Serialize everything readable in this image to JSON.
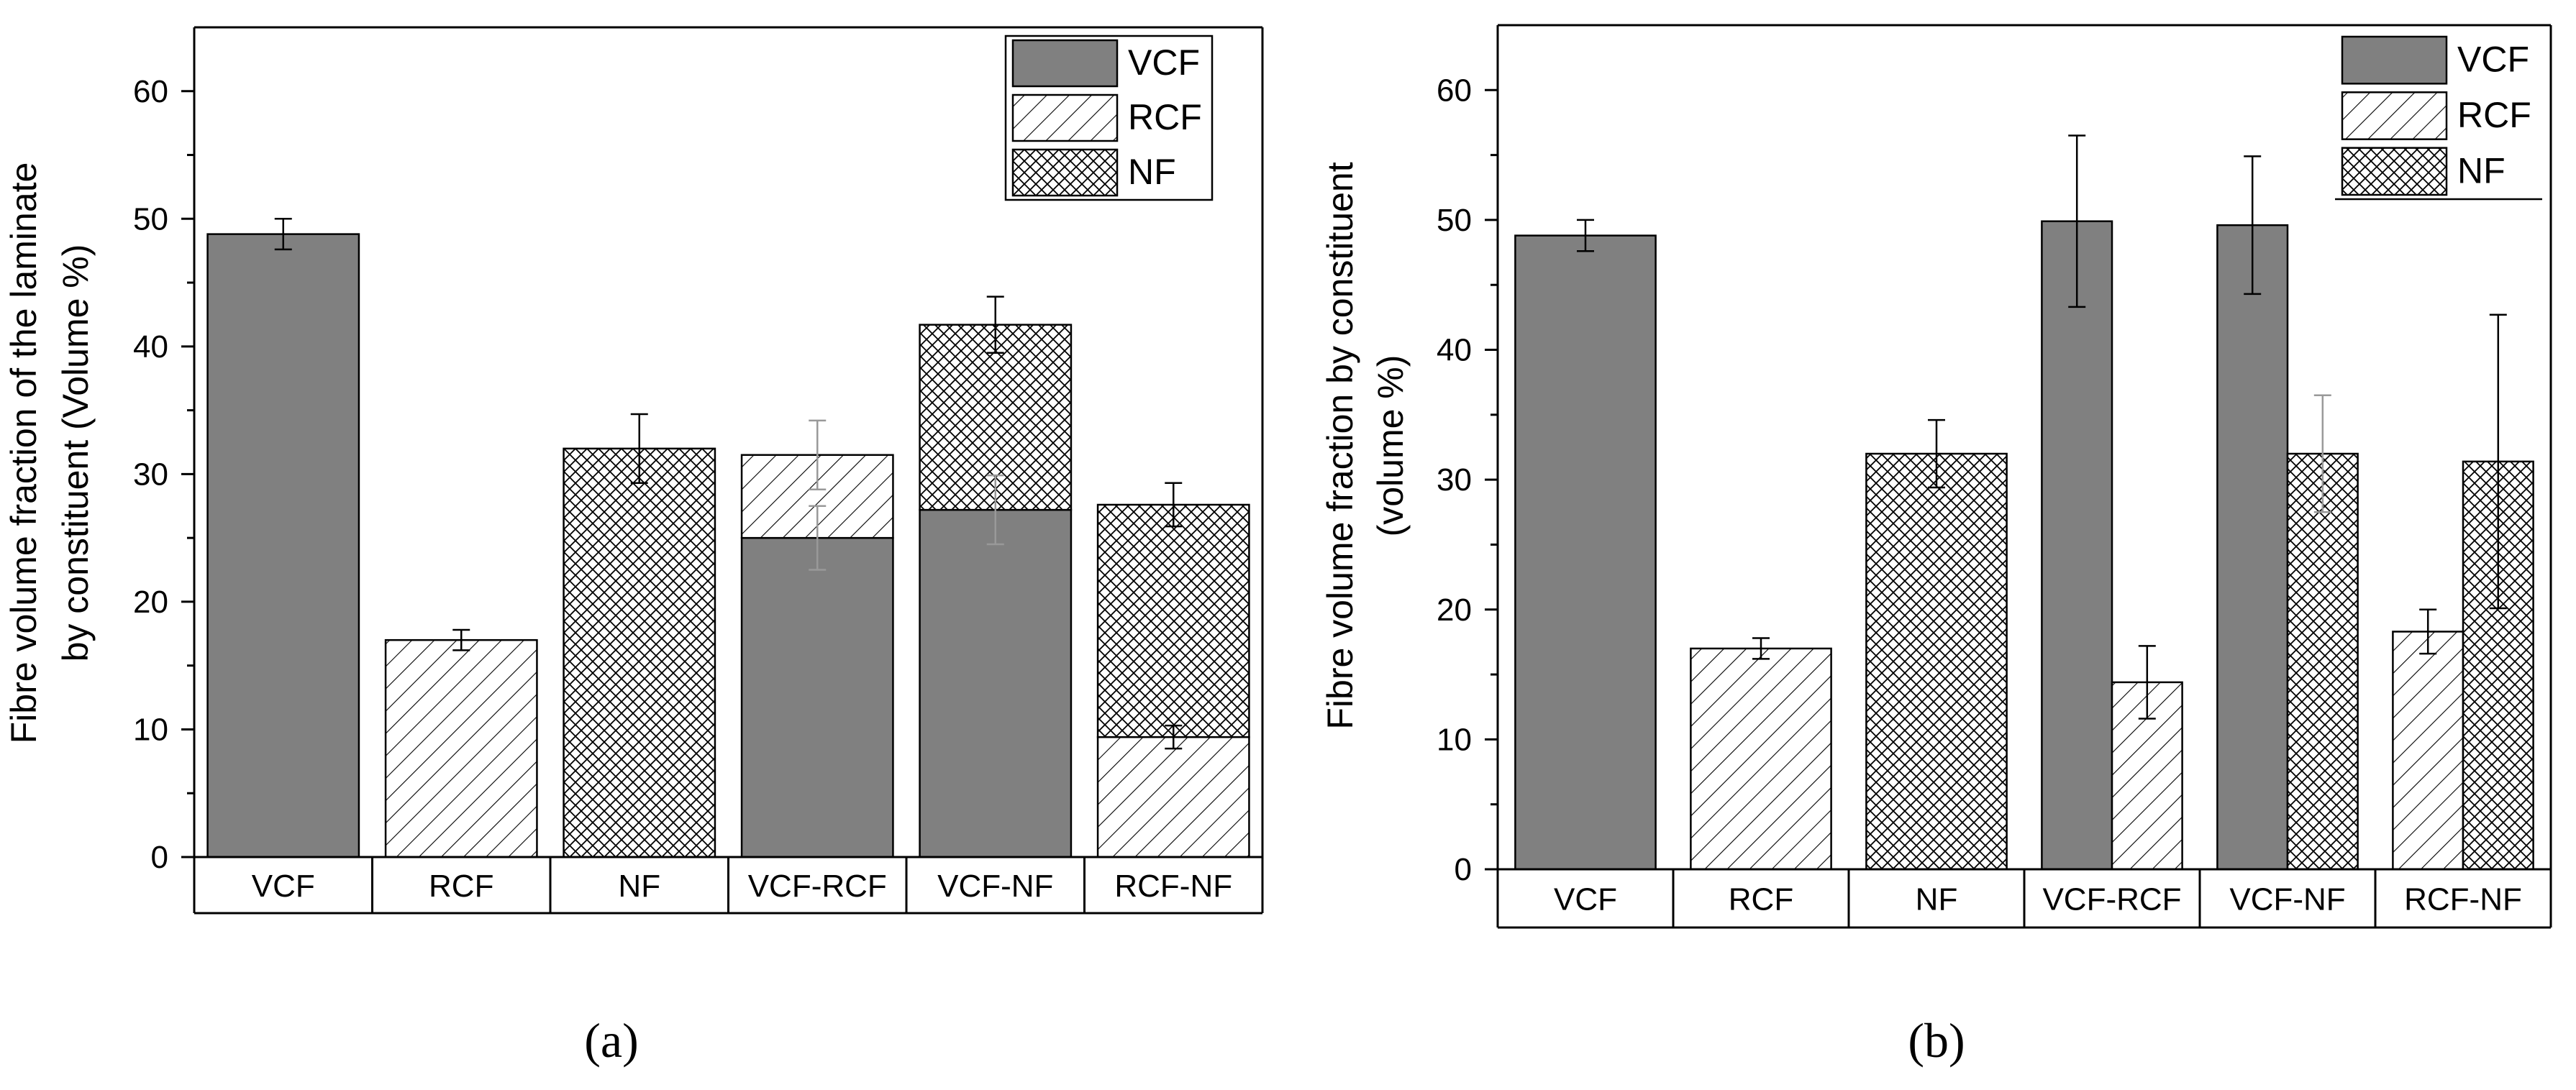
{
  "chart_data": [
    {
      "type": "bar",
      "panel_label": "(a)",
      "variant": "stacked",
      "categories": [
        "VCF",
        "RCF",
        "NF",
        "VCF-RCF",
        "VCF-NF",
        "RCF-NF"
      ],
      "ylabel_line1": "Fibre volume fraction of the laminate",
      "ylabel_line2": "by constituent (Volume %)",
      "ylim": [
        0,
        65
      ],
      "yticks": [
        "0",
        "10",
        "20",
        "30",
        "40",
        "50",
        "60"
      ],
      "legend": {
        "position": "top-right",
        "labels": [
          "VCF",
          "RCF",
          "NF"
        ]
      },
      "series": [
        {
          "name": "VCF",
          "values": [
            48.8,
            0,
            0,
            25.0,
            27.2,
            0
          ],
          "errors": [
            1.2,
            0,
            0,
            2.5,
            2.7,
            0
          ]
        },
        {
          "name": "RCF",
          "values": [
            0,
            17.0,
            0,
            6.5,
            0,
            9.4
          ],
          "errors": [
            0,
            0.8,
            0,
            2.7,
            0,
            0.9
          ]
        },
        {
          "name": "NF",
          "values": [
            0,
            0,
            32.0,
            0,
            14.5,
            18.2
          ],
          "errors": [
            0,
            0,
            2.7,
            0,
            2.2,
            1.7
          ]
        }
      ]
    },
    {
      "type": "bar",
      "panel_label": "(b)",
      "variant": "grouped",
      "categories": [
        "VCF",
        "RCF",
        "NF",
        "VCF-RCF",
        "VCF-NF",
        "RCF-NF"
      ],
      "ylabel_line1": "Fibre volume fraction by constituent",
      "ylabel_line2": "(volume %)",
      "ylim": [
        0,
        65
      ],
      "yticks": [
        "0",
        "10",
        "20",
        "30",
        "40",
        "50",
        "60"
      ],
      "legend": {
        "position": "top-right",
        "labels": [
          "VCF",
          "RCF",
          "NF"
        ]
      },
      "series": [
        {
          "name": "VCF",
          "values": [
            48.8,
            null,
            null,
            49.9,
            49.6,
            null
          ],
          "errors": [
            1.2,
            null,
            null,
            6.6,
            5.3,
            null
          ]
        },
        {
          "name": "RCF",
          "values": [
            null,
            17.0,
            null,
            14.4,
            null,
            18.3
          ],
          "errors": [
            null,
            0.8,
            null,
            2.8,
            null,
            1.7
          ]
        },
        {
          "name": "NF",
          "values": [
            null,
            null,
            32.0,
            null,
            32.0,
            31.4
          ],
          "errors": [
            null,
            null,
            2.6,
            null,
            4.5,
            11.3
          ]
        }
      ]
    }
  ],
  "colors": {
    "vcf_fill": "#808080",
    "axis": "#000000",
    "hatch": "#000000",
    "error_light": "#999999"
  }
}
